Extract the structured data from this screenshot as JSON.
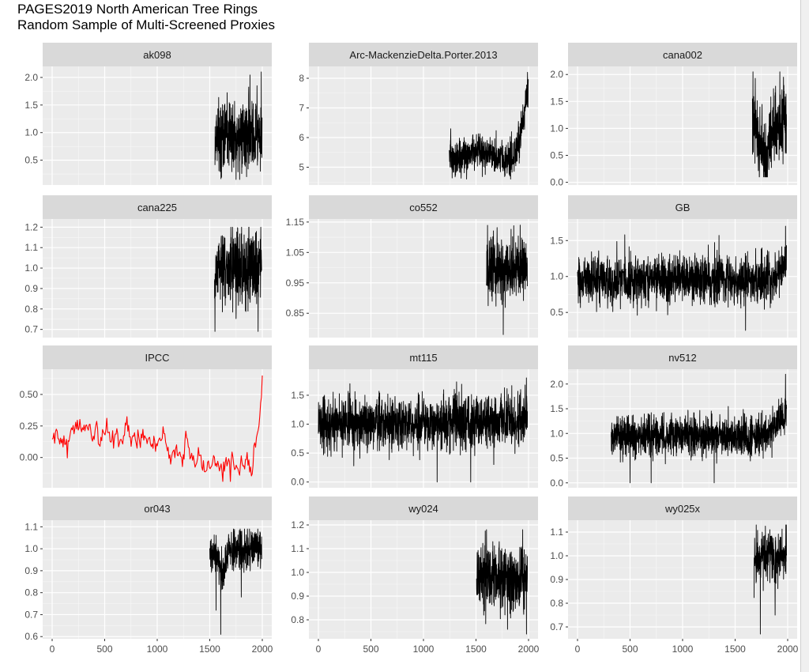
{
  "title": "PAGES2019 North American Tree Rings",
  "subtitle": "Random Sample of Multi-Screened Proxies",
  "colors": {
    "panel_bg": "#ebebeb",
    "strip_bg": "#d9d9d9",
    "grid_major": "#ffffff",
    "series_default": "#000000",
    "series_ipcc": "#ff0000",
    "tick_text": "#4d4d4d"
  },
  "chart_data": {
    "type": "line",
    "layout": "facet_wrap 4x3, shared x axis, free y scales",
    "x_ticks": [
      0,
      500,
      1000,
      1500,
      2000
    ],
    "xlim": [
      0,
      2000
    ],
    "grid": true,
    "legend": "none",
    "panels": [
      {
        "name": "ak098",
        "x_start": 1550,
        "x_end": 1998,
        "baseline": 0.95,
        "noise": 0.33,
        "y_min": 0.15,
        "y_max": 2.1,
        "trend": [
          [
            1550,
            0.95
          ],
          [
            1998,
            0.95
          ]
        ],
        "spikes": [
          [
            1990,
            2.1
          ],
          [
            1750,
            0.15
          ],
          [
            1850,
            0.2
          ]
        ],
        "ylim": [
          0.05,
          2.2
        ],
        "yticks": [
          0.5,
          1.0,
          1.5,
          2.0
        ],
        "ytick_labels": [
          "0.5",
          "1.0",
          "1.5",
          "2.0"
        ],
        "color": "#000000"
      },
      {
        "name": "Arc-MackenzieDelta.Porter.2013",
        "x_start": 1245,
        "x_end": 1998,
        "baseline": 5.4,
        "noise": 0.28,
        "y_min": 4.6,
        "y_max": 8.2,
        "trend": [
          [
            1245,
            5.6
          ],
          [
            1300,
            5.2
          ],
          [
            1500,
            5.6
          ],
          [
            1700,
            5.3
          ],
          [
            1850,
            5.3
          ],
          [
            1920,
            6.0
          ],
          [
            1998,
            7.8
          ]
        ],
        "spikes": [
          [
            1990,
            8.2
          ],
          [
            1830,
            4.6
          ],
          [
            1260,
            6.3
          ]
        ],
        "ylim": [
          4.4,
          8.4
        ],
        "yticks": [
          5,
          6,
          7,
          8
        ],
        "ytick_labels": [
          "5",
          "6",
          "7",
          "8"
        ],
        "color": "#000000"
      },
      {
        "name": "cana002",
        "x_start": 1665,
        "x_end": 1990,
        "baseline": 1.0,
        "noise": 0.33,
        "y_min": 0.1,
        "y_max": 2.05,
        "trend": [
          [
            1665,
            1.1
          ],
          [
            1750,
            0.6
          ],
          [
            1800,
            0.45
          ],
          [
            1850,
            1.0
          ],
          [
            1990,
            1.2
          ]
        ],
        "spikes": [
          [
            1670,
            2.05
          ],
          [
            1800,
            0.1
          ],
          [
            1960,
            1.95
          ]
        ],
        "ylim": [
          -0.05,
          2.15
        ],
        "yticks": [
          0.0,
          0.5,
          1.0,
          1.5,
          2.0
        ],
        "ytick_labels": [
          "0.0",
          "0.5",
          "1.0",
          "1.5",
          "2.0"
        ],
        "color": "#000000"
      },
      {
        "name": "cana225",
        "x_start": 1545,
        "x_end": 1995,
        "baseline": 0.98,
        "noise": 0.09,
        "y_min": 0.69,
        "y_max": 1.2,
        "trend": [
          [
            1545,
            0.98
          ],
          [
            1995,
            1.02
          ]
        ],
        "spikes": [
          [
            1550,
            0.69
          ],
          [
            1960,
            0.69
          ],
          [
            1985,
            1.2
          ]
        ],
        "ylim": [
          0.66,
          1.24
        ],
        "yticks": [
          0.7,
          0.8,
          0.9,
          1.0,
          1.1,
          1.2
        ],
        "ytick_labels": [
          "0.7",
          "0.8",
          "0.9",
          "1.0",
          "1.1",
          "1.2"
        ],
        "color": "#000000"
      },
      {
        "name": "co552",
        "x_start": 1600,
        "x_end": 1990,
        "baseline": 0.985,
        "noise": 0.05,
        "y_min": 0.78,
        "y_max": 1.14,
        "trend": [
          [
            1600,
            0.99
          ],
          [
            1990,
            1.0
          ]
        ],
        "spikes": [
          [
            1760,
            0.78
          ],
          [
            1920,
            1.14
          ],
          [
            1640,
            1.1
          ]
        ],
        "ylim": [
          0.77,
          1.16
        ],
        "yticks": [
          0.85,
          0.95,
          1.05,
          1.15
        ],
        "ytick_labels": [
          "0.85",
          "0.95",
          "1.05",
          "1.15"
        ],
        "color": "#000000"
      },
      {
        "name": "GB",
        "x_start": 0,
        "x_end": 1990,
        "baseline": 0.95,
        "noise": 0.16,
        "y_min": 0.25,
        "y_max": 1.7,
        "trend": [
          [
            0,
            0.95
          ],
          [
            1850,
            0.95
          ],
          [
            1990,
            1.2
          ]
        ],
        "spikes": [
          [
            1980,
            1.7
          ],
          [
            1600,
            0.25
          ],
          [
            450,
            1.58
          ]
        ],
        "ylim": [
          0.15,
          1.8
        ],
        "yticks": [
          0.5,
          1.0,
          1.5
        ],
        "ytick_labels": [
          "0.5",
          "1.0",
          "1.5"
        ],
        "color": "#000000"
      },
      {
        "name": "IPCC",
        "x_start": 0,
        "x_end": 2000,
        "baseline": 0.15,
        "noise": 0.05,
        "y_min": -0.19,
        "y_max": 0.65,
        "trend": [
          [
            0,
            0.12
          ],
          [
            250,
            0.22
          ],
          [
            700,
            0.18
          ],
          [
            1000,
            0.13
          ],
          [
            1200,
            0.04
          ],
          [
            1500,
            -0.05
          ],
          [
            1700,
            -0.08
          ],
          [
            1800,
            -0.1
          ],
          [
            1900,
            -0.02
          ],
          [
            1950,
            0.2
          ],
          [
            2000,
            0.5
          ]
        ],
        "spikes": [
          [
            2000,
            0.65
          ],
          [
            1700,
            -0.19
          ]
        ],
        "ylim": [
          -0.24,
          0.7
        ],
        "yticks": [
          0.0,
          0.25,
          0.5
        ],
        "ytick_labels": [
          "0.00",
          "0.25",
          "0.50"
        ],
        "color": "#ff0000"
      },
      {
        "name": "mt115",
        "x_start": 0,
        "x_end": 1990,
        "baseline": 1.0,
        "noise": 0.22,
        "y_min": 0.0,
        "y_max": 1.8,
        "trend": [
          [
            0,
            1.0
          ],
          [
            1990,
            1.05
          ]
        ],
        "spikes": [
          [
            1130,
            0.0
          ],
          [
            1450,
            0.0
          ],
          [
            1980,
            1.8
          ],
          [
            300,
            1.7
          ]
        ],
        "ylim": [
          -0.1,
          1.95
        ],
        "yticks": [
          0.0,
          0.5,
          1.0,
          1.5
        ],
        "ytick_labels": [
          "0.0",
          "0.5",
          "1.0",
          "1.5"
        ],
        "color": "#000000"
      },
      {
        "name": "nv512",
        "x_start": 320,
        "x_end": 1990,
        "baseline": 0.95,
        "noise": 0.2,
        "y_min": 0.0,
        "y_max": 2.2,
        "trend": [
          [
            320,
            0.95
          ],
          [
            1800,
            0.95
          ],
          [
            1990,
            1.4
          ]
        ],
        "spikes": [
          [
            1980,
            2.2
          ],
          [
            500,
            0.0
          ],
          [
            1300,
            0.0
          ],
          [
            700,
            0.0
          ]
        ],
        "ylim": [
          -0.1,
          2.3
        ],
        "yticks": [
          0.0,
          0.5,
          1.0,
          1.5,
          2.0
        ],
        "ytick_labels": [
          "0.0",
          "0.5",
          "1.0",
          "1.5",
          "2.0"
        ],
        "color": "#000000"
      },
      {
        "name": "or043",
        "x_start": 1500,
        "x_end": 1995,
        "baseline": 1.0,
        "noise": 0.04,
        "y_min": 0.61,
        "y_max": 1.09,
        "trend": [
          [
            1500,
            0.98
          ],
          [
            1580,
            0.97
          ],
          [
            1620,
            0.85
          ],
          [
            1680,
            1.0
          ],
          [
            1995,
            1.0
          ]
        ],
        "spikes": [
          [
            1605,
            0.61
          ],
          [
            1560,
            0.72
          ],
          [
            1800,
            0.78
          ]
        ],
        "ylim": [
          0.59,
          1.13
        ],
        "yticks": [
          0.6,
          0.7,
          0.8,
          0.9,
          1.0,
          1.1
        ],
        "ytick_labels": [
          "0.6",
          "0.7",
          "0.8",
          "0.9",
          "1.0",
          "1.1"
        ],
        "color": "#000000"
      },
      {
        "name": "wy024",
        "x_start": 1505,
        "x_end": 1990,
        "baseline": 0.99,
        "noise": 0.07,
        "y_min": 0.74,
        "y_max": 1.18,
        "trend": [
          [
            1505,
            0.98
          ],
          [
            1990,
            0.99
          ]
        ],
        "spikes": [
          [
            1600,
            1.18
          ],
          [
            1980,
            0.74
          ],
          [
            1800,
            0.76
          ]
        ],
        "ylim": [
          0.72,
          1.22
        ],
        "yticks": [
          0.8,
          0.9,
          1.0,
          1.1,
          1.2
        ],
        "ytick_labels": [
          "0.8",
          "0.9",
          "1.0",
          "1.1",
          "1.2"
        ],
        "color": "#000000"
      },
      {
        "name": "wy025x",
        "x_start": 1680,
        "x_end": 1990,
        "baseline": 0.99,
        "noise": 0.05,
        "y_min": 0.67,
        "y_max": 1.13,
        "trend": [
          [
            1680,
            1.0
          ],
          [
            1990,
            0.99
          ]
        ],
        "spikes": [
          [
            1700,
            1.13
          ],
          [
            1740,
            0.67
          ],
          [
            1880,
            0.75
          ]
        ],
        "ylim": [
          0.65,
          1.15
        ],
        "yticks": [
          0.7,
          0.8,
          0.9,
          1.0,
          1.1
        ],
        "ytick_labels": [
          "0.7",
          "0.8",
          "0.9",
          "1.0",
          "1.1"
        ],
        "color": "#000000"
      }
    ]
  }
}
